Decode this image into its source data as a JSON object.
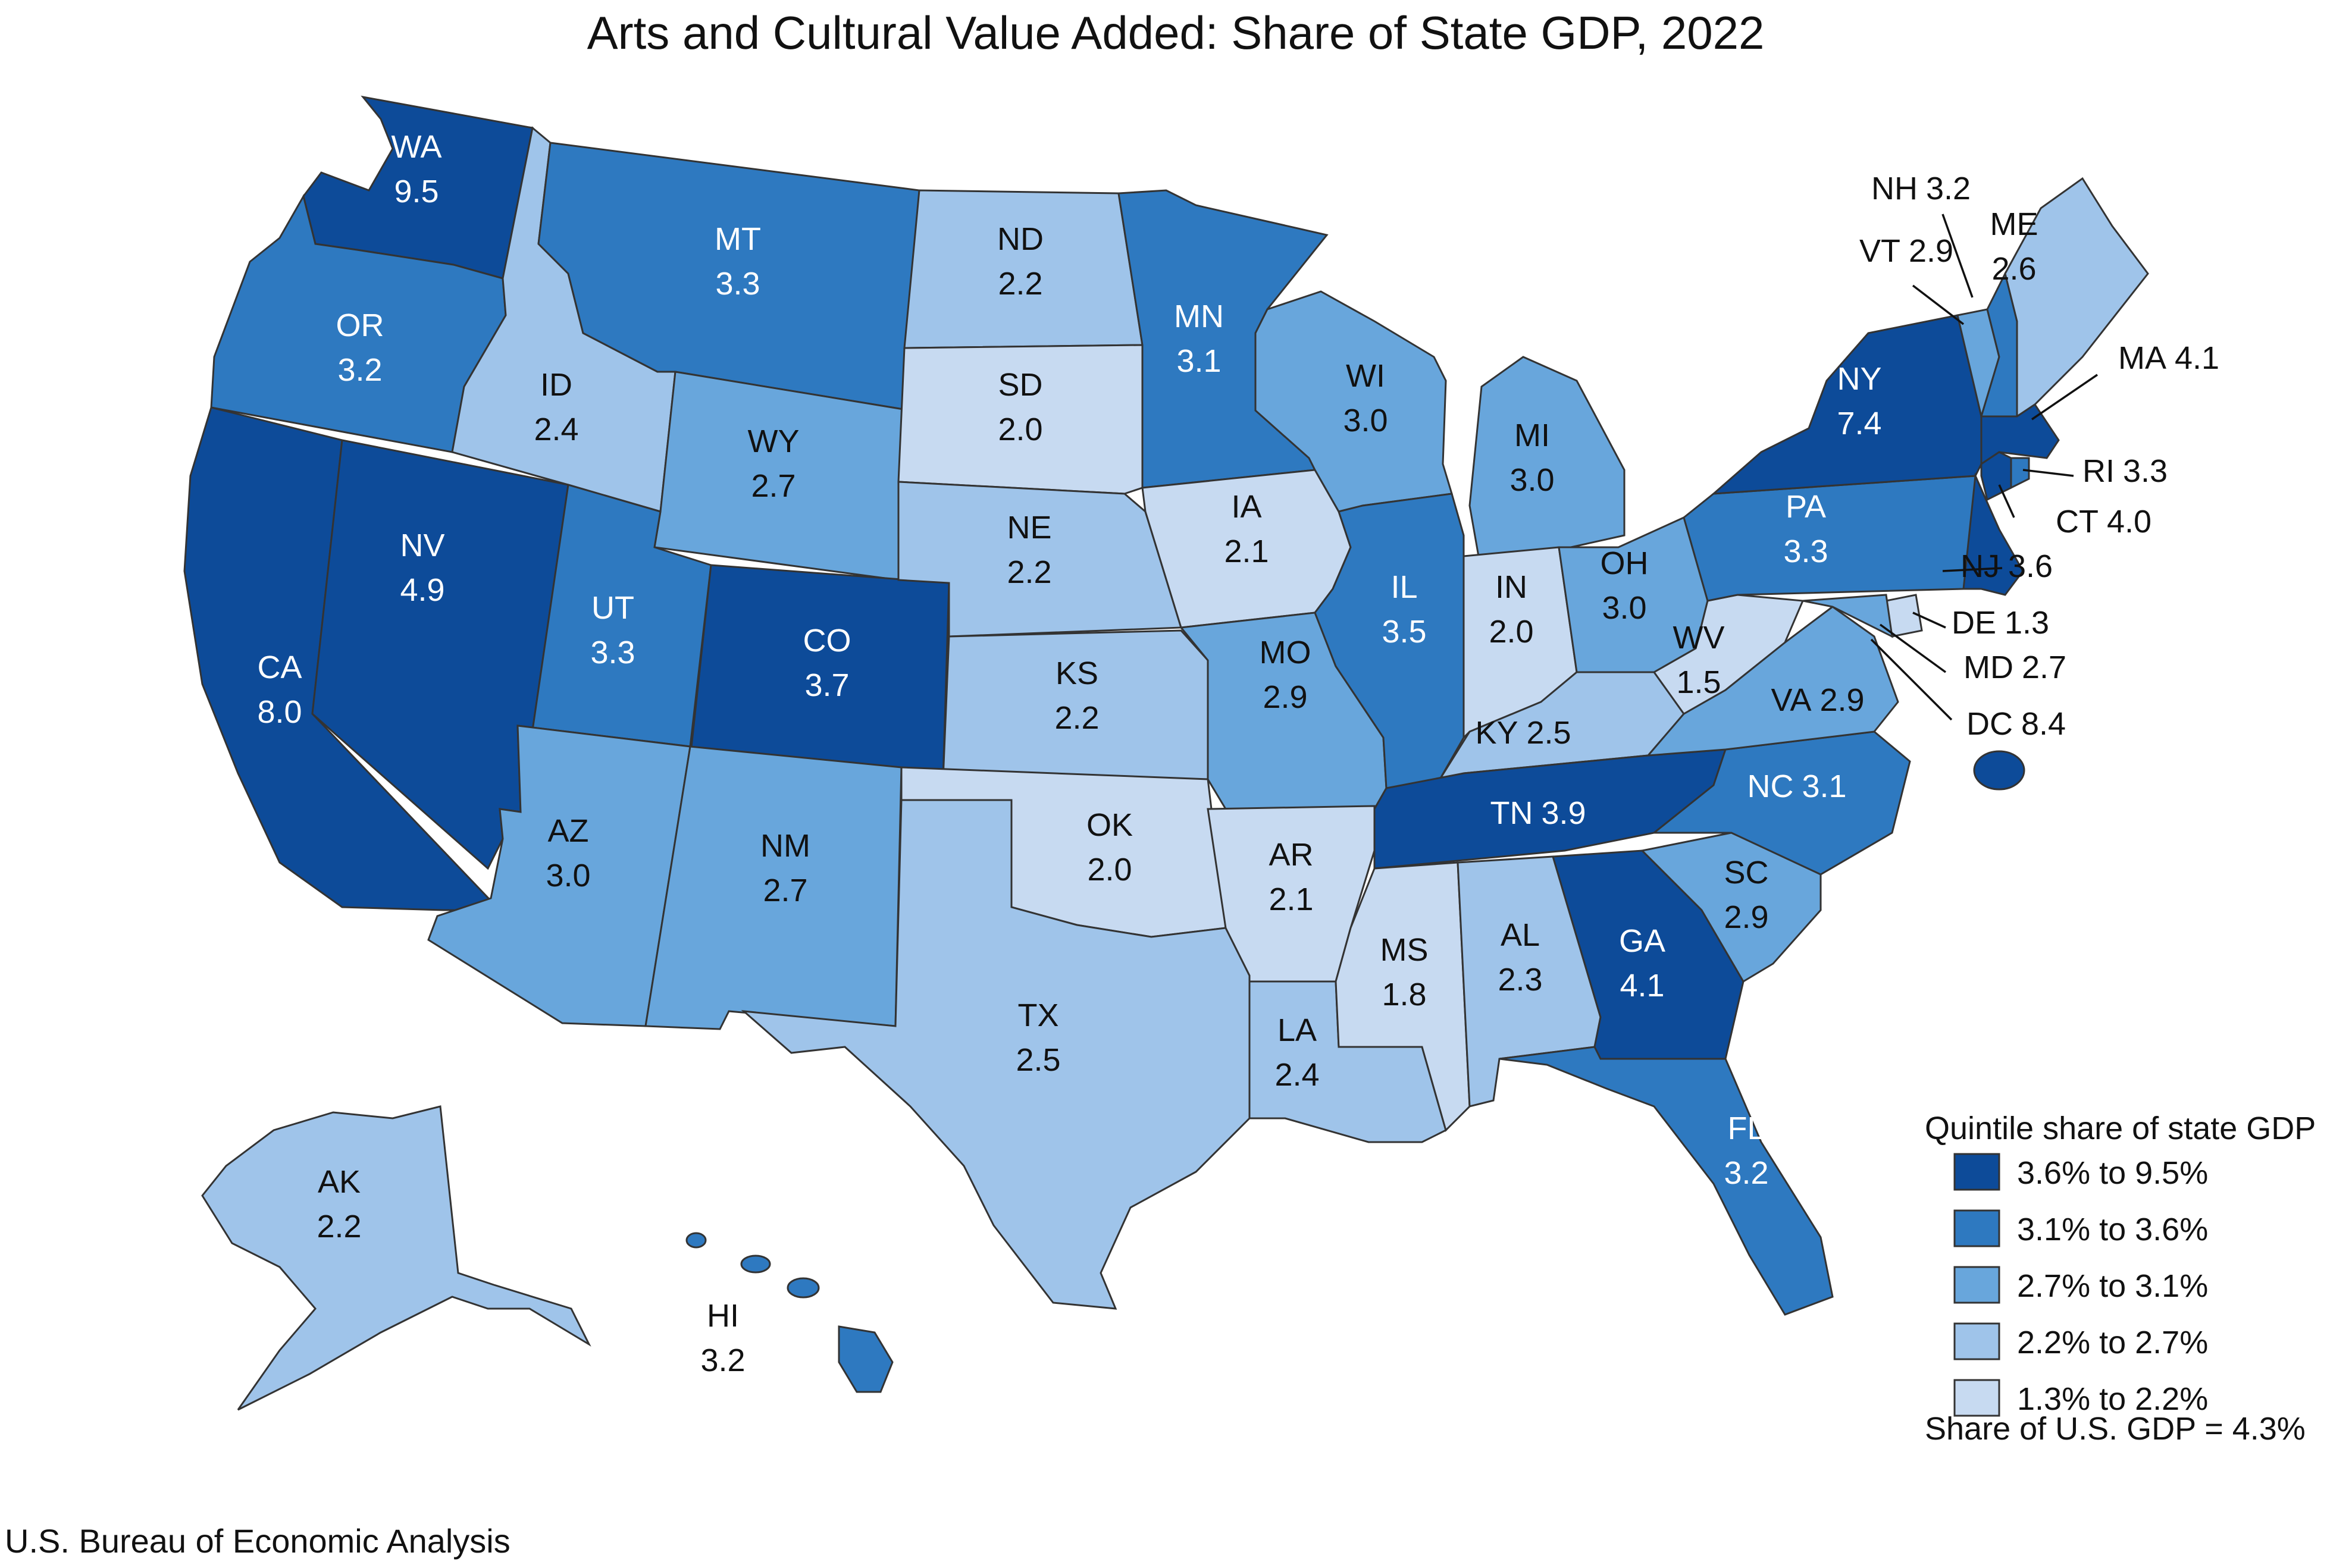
{
  "title": "Arts and Cultural Value Added: Share of State GDP, 2022",
  "source": "U.S. Bureau of Economic Analysis",
  "legend": {
    "title": "Quintile share of state GDP",
    "items": [
      {
        "label": "3.6% to 9.5%",
        "color": "#0d4b99"
      },
      {
        "label": "3.1% to 3.6%",
        "color": "#2e79c0"
      },
      {
        "label": "2.7% to 3.1%",
        "color": "#68a6dc"
      },
      {
        "label": "2.2% to 2.7%",
        "color": "#9fc4ea"
      },
      {
        "label": "1.3% to 2.2%",
        "color": "#c7daf1"
      }
    ],
    "us_share": "Share of U.S. GDP = 4.3%"
  },
  "states": [
    {
      "abbr": "WA",
      "value": "9.5"
    },
    {
      "abbr": "OR",
      "value": "3.2"
    },
    {
      "abbr": "CA",
      "value": "8.0"
    },
    {
      "abbr": "NV",
      "value": "4.9"
    },
    {
      "abbr": "ID",
      "value": "2.4"
    },
    {
      "abbr": "MT",
      "value": "3.3"
    },
    {
      "abbr": "WY",
      "value": "2.7"
    },
    {
      "abbr": "UT",
      "value": "3.3"
    },
    {
      "abbr": "CO",
      "value": "3.7"
    },
    {
      "abbr": "AZ",
      "value": "3.0"
    },
    {
      "abbr": "NM",
      "value": "2.7"
    },
    {
      "abbr": "ND",
      "value": "2.2"
    },
    {
      "abbr": "SD",
      "value": "2.0"
    },
    {
      "abbr": "NE",
      "value": "2.2"
    },
    {
      "abbr": "KS",
      "value": "2.2"
    },
    {
      "abbr": "OK",
      "value": "2.0"
    },
    {
      "abbr": "TX",
      "value": "2.5"
    },
    {
      "abbr": "MN",
      "value": "3.1"
    },
    {
      "abbr": "IA",
      "value": "2.1"
    },
    {
      "abbr": "MO",
      "value": "2.9"
    },
    {
      "abbr": "AR",
      "value": "2.1"
    },
    {
      "abbr": "LA",
      "value": "2.4"
    },
    {
      "abbr": "WI",
      "value": "3.0"
    },
    {
      "abbr": "IL",
      "value": "3.5"
    },
    {
      "abbr": "MI",
      "value": "3.0"
    },
    {
      "abbr": "IN",
      "value": "2.0"
    },
    {
      "abbr": "OH",
      "value": "3.0"
    },
    {
      "abbr": "KY",
      "value": "2.5"
    },
    {
      "abbr": "TN",
      "value": "3.9"
    },
    {
      "abbr": "MS",
      "value": "1.8"
    },
    {
      "abbr": "AL",
      "value": "2.3"
    },
    {
      "abbr": "GA",
      "value": "4.1"
    },
    {
      "abbr": "FL",
      "value": "3.2"
    },
    {
      "abbr": "SC",
      "value": "2.9"
    },
    {
      "abbr": "NC",
      "value": "3.1"
    },
    {
      "abbr": "VA",
      "value": "2.9"
    },
    {
      "abbr": "WV",
      "value": "1.5"
    },
    {
      "abbr": "PA",
      "value": "3.3"
    },
    {
      "abbr": "NY",
      "value": "7.4"
    },
    {
      "abbr": "VT",
      "value": "2.9"
    },
    {
      "abbr": "NH",
      "value": "3.2"
    },
    {
      "abbr": "ME",
      "value": "2.6"
    },
    {
      "abbr": "MA",
      "value": "4.1"
    },
    {
      "abbr": "RI",
      "value": "3.3"
    },
    {
      "abbr": "CT",
      "value": "4.0"
    },
    {
      "abbr": "NJ",
      "value": "3.6"
    },
    {
      "abbr": "DE",
      "value": "1.3"
    },
    {
      "abbr": "MD",
      "value": "2.7"
    },
    {
      "abbr": "DC",
      "value": "8.4"
    },
    {
      "abbr": "AK",
      "value": "2.2"
    },
    {
      "abbr": "HI",
      "value": "3.2"
    }
  ]
}
